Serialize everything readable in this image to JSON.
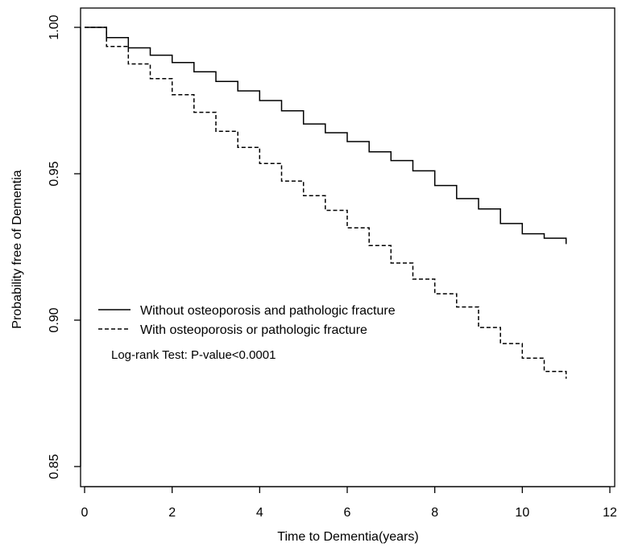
{
  "chart_data": {
    "type": "line",
    "title": "",
    "xlabel": "Time to Dementia(years)",
    "ylabel": "Probability free of Dementia",
    "xlim": [
      0,
      12
    ],
    "ylim": [
      0.845,
      1.005
    ],
    "x_ticks": [
      0,
      2,
      4,
      6,
      8,
      10,
      12
    ],
    "x_tick_labels": [
      "0",
      "2",
      "4",
      "6",
      "8",
      "10",
      "12"
    ],
    "y_ticks": [
      0.85,
      0.9,
      0.95,
      1.0
    ],
    "y_tick_labels": [
      "0.85",
      "0.90",
      "0.95",
      "1.00"
    ],
    "grid": false,
    "legend_position": "center-left",
    "series": [
      {
        "name": "Without osteoporosis and pathologic fracture",
        "line_style": "solid",
        "x": [
          0,
          0.5,
          1,
          1.5,
          2,
          2.5,
          3,
          3.5,
          4,
          4.5,
          5,
          5.5,
          6,
          6.5,
          7,
          7.5,
          8,
          8.5,
          9,
          9.5,
          10,
          10.5,
          11
        ],
        "y": [
          1.0,
          0.9965,
          0.993,
          0.9905,
          0.988,
          0.9848,
          0.9815,
          0.9783,
          0.975,
          0.9715,
          0.967,
          0.964,
          0.961,
          0.9575,
          0.9545,
          0.951,
          0.946,
          0.9415,
          0.938,
          0.933,
          0.9295,
          0.928,
          0.926
        ]
      },
      {
        "name": "With osteoporosis or pathologic fracture",
        "line_style": "dashed",
        "x": [
          0,
          0.5,
          1,
          1.5,
          2,
          2.5,
          3,
          3.5,
          4,
          4.5,
          5,
          5.5,
          6,
          6.5,
          7,
          7.5,
          8,
          8.5,
          9,
          9.5,
          10,
          10.5,
          11
        ],
        "y": [
          1.0,
          0.9935,
          0.9875,
          0.9825,
          0.977,
          0.971,
          0.9645,
          0.959,
          0.9535,
          0.9475,
          0.9425,
          0.9375,
          0.9315,
          0.9255,
          0.9195,
          0.914,
          0.909,
          0.9045,
          0.8975,
          0.892,
          0.887,
          0.8825,
          0.88
        ]
      }
    ],
    "annotations": [
      "Log-rank Test: P-value<0.0001"
    ]
  }
}
